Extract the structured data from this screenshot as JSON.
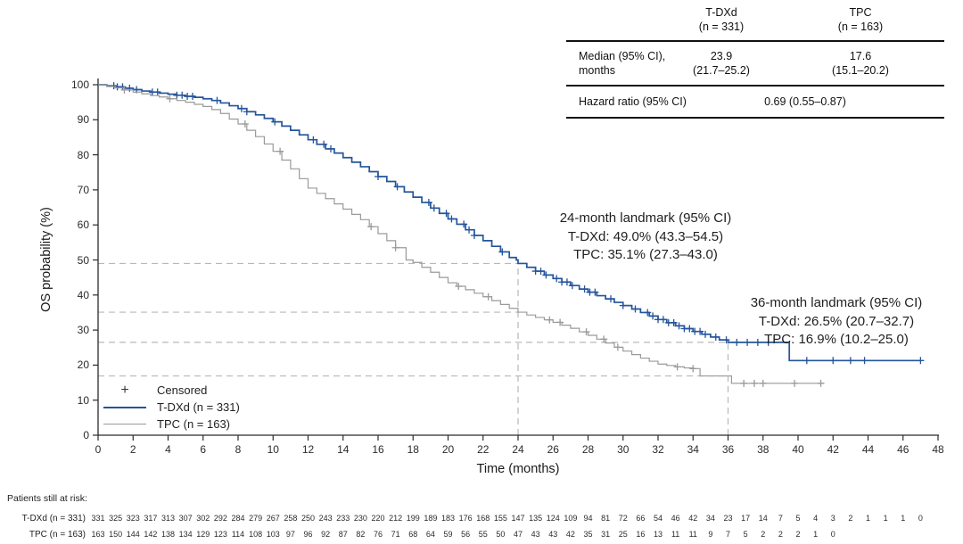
{
  "results_table": {
    "header": {
      "col2": [
        "T-DXd",
        "(n = 331)"
      ],
      "col3": [
        "TPC",
        "(n = 163)"
      ]
    },
    "median_row": {
      "label": [
        "Median (95% CI),",
        "months"
      ],
      "tdxd": [
        "23.9",
        "(21.7–25.2)"
      ],
      "tpc": [
        "17.6",
        "(15.1–20.2)"
      ]
    },
    "hazard_row": {
      "label": "Hazard ratio (95% CI)",
      "value": "0.69 (0.55–0.87)"
    }
  },
  "annotations": {
    "landmark24": {
      "line1": "24-month landmark (95% CI)",
      "line2": "T-DXd: 49.0% (43.3–54.5)",
      "line3": "TPC: 35.1% (27.3–43.0)"
    },
    "landmark36": {
      "line1": "36-month landmark (95% CI)",
      "line2": "T-DXd: 26.5% (20.7–32.7)",
      "line3": "TPC: 16.9% (10.2–25.0)"
    }
  },
  "legend": {
    "censored_symbol": "+",
    "censored": "Censored",
    "tdxd": "T-DXd (n = 331)",
    "tpc": "TPC (n = 163)"
  },
  "axes": {
    "ylabel": "OS probability (%)",
    "xlabel": "Time (months)"
  },
  "at_risk": {
    "title": "Patients still at risk:",
    "rows": [
      {
        "label": "T-DXd (n = 331)",
        "values": [
          331,
          325,
          323,
          317,
          313,
          307,
          302,
          292,
          284,
          279,
          267,
          258,
          250,
          243,
          233,
          230,
          220,
          212,
          199,
          189,
          183,
          176,
          168,
          155,
          147,
          135,
          124,
          109,
          94,
          81,
          72,
          66,
          54,
          46,
          42,
          34,
          23,
          17,
          14,
          7,
          5,
          4,
          3,
          2,
          1,
          1,
          1,
          0
        ]
      },
      {
        "label": "TPC (n = 163)",
        "values": [
          163,
          150,
          144,
          142,
          138,
          134,
          129,
          123,
          114,
          108,
          103,
          97,
          96,
          92,
          87,
          82,
          76,
          71,
          68,
          64,
          59,
          56,
          55,
          50,
          47,
          43,
          43,
          42,
          35,
          31,
          25,
          16,
          13,
          11,
          11,
          9,
          7,
          5,
          2,
          2,
          2,
          1,
          0
        ]
      }
    ]
  },
  "chart_data": {
    "type": "line",
    "subtype": "kaplan-meier-step",
    "title": "",
    "xlabel": "Time (months)",
    "ylabel": "OS probability (%)",
    "xlim": [
      0,
      48
    ],
    "ylim": [
      0,
      100
    ],
    "x_ticks": [
      0,
      2,
      4,
      6,
      8,
      10,
      12,
      14,
      16,
      18,
      20,
      22,
      24,
      26,
      28,
      30,
      32,
      34,
      36,
      38,
      40,
      42,
      44,
      46,
      48
    ],
    "y_ticks": [
      0,
      10,
      20,
      30,
      40,
      50,
      60,
      70,
      80,
      90,
      100
    ],
    "grid": false,
    "legend_position": "lower-left",
    "axis_color": "#2b2b2b",
    "dash_color": "#b8b8b8",
    "medians_months": {
      "tdxd": 23.9,
      "tpc": 17.6
    },
    "hazard_ratio": "0.69 (0.55–0.87)",
    "landmarks": {
      "24_month": {
        "tdxd_pct": 49.0,
        "tpc_pct": 35.1
      },
      "36_month": {
        "tdxd_pct": 26.5,
        "tpc_pct": 16.9
      }
    },
    "reference_lines": [
      {
        "type": "h",
        "value": 49.0,
        "x_from": 0,
        "x_to": 24
      },
      {
        "type": "h",
        "value": 35.1,
        "x_from": 0,
        "x_to": 24
      },
      {
        "type": "h",
        "value": 26.5,
        "x_from": 0,
        "x_to": 36
      },
      {
        "type": "h",
        "value": 16.9,
        "x_from": 0,
        "x_to": 36
      },
      {
        "type": "v",
        "value": 24,
        "y_from": 0,
        "y_to": 49.0
      },
      {
        "type": "v",
        "value": 36,
        "y_from": 0,
        "y_to": 26.5
      }
    ],
    "series": [
      {
        "name": "T-DXd (n = 331)",
        "color": "#24549C",
        "width": 1.7,
        "points": [
          [
            0,
            100
          ],
          [
            0.5,
            99.7
          ],
          [
            1,
            99.4
          ],
          [
            1.5,
            99.0
          ],
          [
            2,
            98.6
          ],
          [
            2.5,
            98.2
          ],
          [
            3,
            97.9
          ],
          [
            3.5,
            97.6
          ],
          [
            4,
            97.3
          ],
          [
            4.5,
            97.0
          ],
          [
            5,
            96.7
          ],
          [
            5.5,
            96.4
          ],
          [
            6,
            96.0
          ],
          [
            6.5,
            95.5
          ],
          [
            7,
            94.8
          ],
          [
            7.5,
            94.0
          ],
          [
            8,
            93.2
          ],
          [
            8.5,
            92.3
          ],
          [
            9,
            91.4
          ],
          [
            9.5,
            90.4
          ],
          [
            10,
            89.4
          ],
          [
            10.5,
            88.2
          ],
          [
            11,
            87.0
          ],
          [
            11.5,
            85.7
          ],
          [
            12,
            84.3
          ],
          [
            12.5,
            83.0
          ],
          [
            13,
            81.7
          ],
          [
            13.5,
            80.5
          ],
          [
            14,
            79.2
          ],
          [
            14.5,
            77.9
          ],
          [
            15,
            76.6
          ],
          [
            15.5,
            75.2
          ],
          [
            16,
            73.8
          ],
          [
            16.5,
            72.4
          ],
          [
            17,
            70.9
          ],
          [
            17.5,
            69.4
          ],
          [
            18,
            67.9
          ],
          [
            18.5,
            66.4
          ],
          [
            19,
            64.8
          ],
          [
            19.5,
            63.3
          ],
          [
            20,
            61.7
          ],
          [
            20.5,
            60.2
          ],
          [
            21,
            58.6
          ],
          [
            21.5,
            57.0
          ],
          [
            22,
            55.5
          ],
          [
            22.5,
            53.9
          ],
          [
            23,
            52.3
          ],
          [
            23.5,
            50.7
          ],
          [
            23.9,
            50.0
          ],
          [
            24,
            49.0
          ],
          [
            24.5,
            47.9
          ],
          [
            25,
            46.8
          ],
          [
            25.5,
            45.7
          ],
          [
            26,
            44.7
          ],
          [
            26.5,
            43.7
          ],
          [
            27,
            42.7
          ],
          [
            27.5,
            41.7
          ],
          [
            28,
            40.8
          ],
          [
            28.5,
            39.8
          ],
          [
            29,
            38.9
          ],
          [
            29.5,
            37.9
          ],
          [
            30,
            37.0
          ],
          [
            30.5,
            36.0
          ],
          [
            31,
            35.0
          ],
          [
            31.5,
            34.0
          ],
          [
            32,
            33.0
          ],
          [
            32.5,
            32.1
          ],
          [
            33,
            31.2
          ],
          [
            33.5,
            30.4
          ],
          [
            34,
            29.6
          ],
          [
            34.5,
            28.8
          ],
          [
            35,
            28.0
          ],
          [
            35.5,
            27.2
          ],
          [
            36,
            26.5
          ],
          [
            39.4,
            26.5
          ],
          [
            39.5,
            21.3
          ],
          [
            47,
            21.3
          ]
        ],
        "censor_months": [
          0.9,
          1.1,
          1.4,
          1.8,
          2.2,
          3.1,
          3.4,
          4.5,
          4.8,
          5.1,
          5.4,
          6.8,
          8.2,
          8.5,
          10.1,
          12.3,
          12.9,
          13.3,
          16.0,
          17.1,
          18.9,
          19.2,
          19.9,
          20.2,
          20.9,
          21.2,
          21.5,
          23.1,
          25.0,
          25.3,
          25.6,
          26.2,
          26.5,
          26.8,
          27.1,
          27.8,
          28.1,
          28.4,
          29.3,
          30.0,
          30.7,
          31.4,
          31.7,
          32.0,
          32.3,
          32.6,
          32.9,
          33.2,
          33.5,
          33.8,
          34.1,
          34.4,
          34.7,
          35.3,
          35.9,
          36.5,
          37.1,
          37.7,
          38.3,
          40.5,
          42.0,
          43.0,
          43.8,
          47.0
        ]
      },
      {
        "name": "TPC (n = 163)",
        "color": "#9A9A9A",
        "width": 1.2,
        "points": [
          [
            0,
            100
          ],
          [
            0.5,
            99.5
          ],
          [
            1,
            99.1
          ],
          [
            1.5,
            98.5
          ],
          [
            2,
            97.9
          ],
          [
            2.5,
            97.4
          ],
          [
            3,
            96.9
          ],
          [
            3.5,
            96.5
          ],
          [
            4,
            96.0
          ],
          [
            4.5,
            95.5
          ],
          [
            5,
            95.0
          ],
          [
            5.5,
            94.4
          ],
          [
            6,
            93.8
          ],
          [
            6.5,
            92.9
          ],
          [
            7,
            91.8
          ],
          [
            7.5,
            90.2
          ],
          [
            8,
            88.8
          ],
          [
            8.5,
            87.0
          ],
          [
            9,
            85.2
          ],
          [
            9.5,
            83.1
          ],
          [
            10,
            81.0
          ],
          [
            10.5,
            78.5
          ],
          [
            11,
            76.0
          ],
          [
            11.5,
            73.2
          ],
          [
            12,
            70.5
          ],
          [
            12.5,
            69.0
          ],
          [
            13,
            67.5
          ],
          [
            13.5,
            66.0
          ],
          [
            14,
            64.5
          ],
          [
            14.5,
            63.0
          ],
          [
            15,
            61.5
          ],
          [
            15.5,
            59.5
          ],
          [
            16,
            57.5
          ],
          [
            16.5,
            55.5
          ],
          [
            17,
            53.5
          ],
          [
            17.6,
            50.0
          ],
          [
            18,
            49.3
          ],
          [
            18.5,
            47.9
          ],
          [
            19,
            46.5
          ],
          [
            19.5,
            45.0
          ],
          [
            20,
            43.5
          ],
          [
            20.5,
            42.5
          ],
          [
            21,
            41.5
          ],
          [
            21.5,
            40.5
          ],
          [
            22,
            39.5
          ],
          [
            22.5,
            38.4
          ],
          [
            23,
            37.3
          ],
          [
            23.5,
            36.2
          ],
          [
            24,
            35.1
          ],
          [
            24.5,
            34.3
          ],
          [
            25,
            33.6
          ],
          [
            25.5,
            32.9
          ],
          [
            26,
            32.2
          ],
          [
            26.5,
            31.4
          ],
          [
            27,
            30.5
          ],
          [
            27.5,
            29.5
          ],
          [
            28,
            28.5
          ],
          [
            28.5,
            27.4
          ],
          [
            29,
            26.3
          ],
          [
            29.5,
            25.1
          ],
          [
            30,
            24.0
          ],
          [
            30.5,
            23.0
          ],
          [
            31,
            22.0
          ],
          [
            31.5,
            21.1
          ],
          [
            32,
            20.3
          ],
          [
            32.5,
            19.9
          ],
          [
            33,
            19.5
          ],
          [
            33.5,
            19.2
          ],
          [
            34,
            19.0
          ],
          [
            34.4,
            16.9
          ],
          [
            36.2,
            14.8
          ],
          [
            41.5,
            14.8
          ]
        ],
        "censor_months": [
          1.5,
          4.1,
          8.4,
          10.4,
          15.6,
          17.0,
          20.6,
          22.3,
          25.8,
          26.4,
          27.9,
          28.9,
          29.7,
          33.1,
          34.0,
          36.9,
          37.5,
          38.0,
          39.8,
          41.3
        ]
      }
    ],
    "at_risk_months_step": 1
  }
}
